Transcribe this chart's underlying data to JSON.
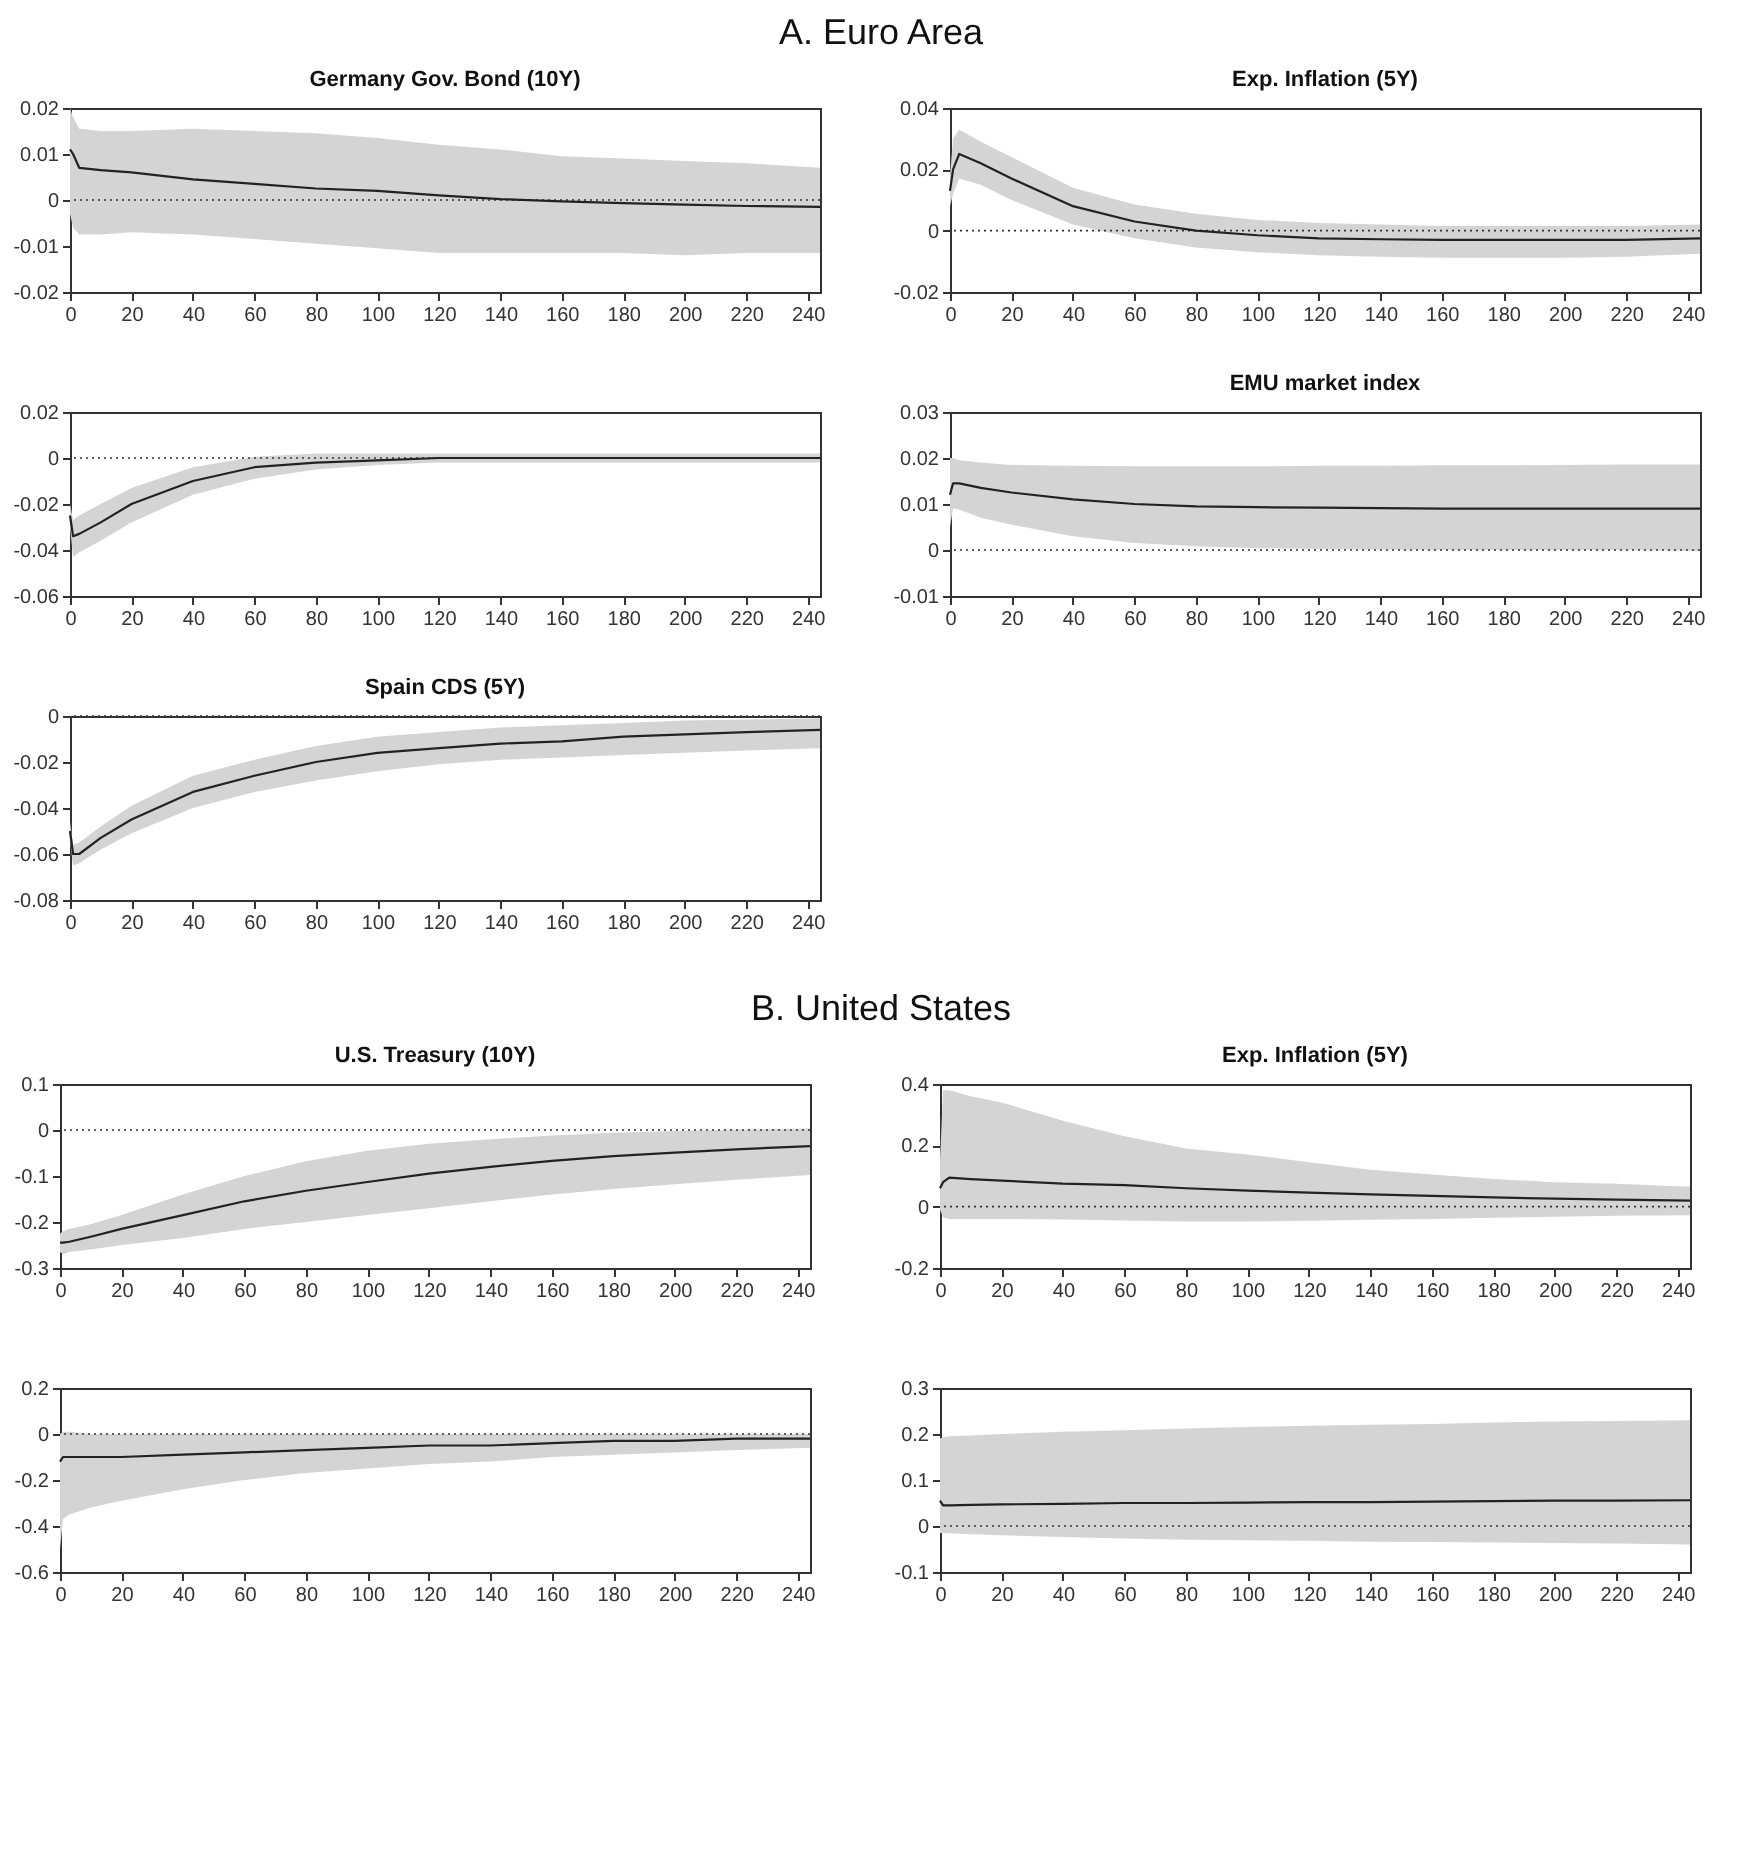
{
  "chart_data": [
    {
      "type": "other",
      "title": "A. Euro Area"
    },
    {
      "type": "line",
      "title": "Germany Gov. Bond (10Y)",
      "x": [
        0,
        1,
        3,
        10,
        20,
        40,
        60,
        80,
        100,
        120,
        140,
        160,
        180,
        200,
        220,
        244
      ],
      "xlim": [
        0,
        244
      ],
      "xticks": [
        0,
        20,
        40,
        60,
        80,
        100,
        120,
        140,
        160,
        180,
        200,
        220,
        240
      ],
      "ylim": [
        -0.02,
        0.02
      ],
      "yticks": [
        -0.02,
        -0.01,
        0,
        0.01,
        0.02
      ],
      "ref_lines": [
        {
          "axis": "y",
          "value": 0,
          "color": "#333333",
          "line_style": "dotted"
        }
      ],
      "series": [
        {
          "color": "#222222",
          "values": [
            0.011,
            0.01,
            0.007,
            0.0065,
            0.006,
            0.0045,
            0.0035,
            0.0025,
            0.002,
            0.001,
            0.0002,
            -0.0003,
            -0.0007,
            -0.001,
            -0.0013,
            -0.0015
          ],
          "upper": [
            0.02,
            0.018,
            0.0155,
            0.015,
            0.015,
            0.0155,
            0.015,
            0.0145,
            0.0135,
            0.012,
            0.011,
            0.0095,
            0.009,
            0.0085,
            0.008,
            0.007
          ],
          "lower": [
            -0.003,
            -0.006,
            -0.0075,
            -0.0075,
            -0.007,
            -0.0075,
            -0.0085,
            -0.0095,
            -0.0105,
            -0.0115,
            -0.0115,
            -0.0115,
            -0.0115,
            -0.012,
            -0.0115,
            -0.0115
          ]
        }
      ]
    },
    {
      "type": "line",
      "title": "Exp. Inflation (5Y)",
      "x": [
        0,
        1,
        3,
        10,
        20,
        40,
        60,
        80,
        100,
        120,
        140,
        160,
        180,
        200,
        220,
        244
      ],
      "xlim": [
        0,
        244
      ],
      "xticks": [
        0,
        20,
        40,
        60,
        80,
        100,
        120,
        140,
        160,
        180,
        200,
        220,
        240
      ],
      "ylim": [
        -0.02,
        0.04
      ],
      "yticks": [
        -0.02,
        0,
        0.02,
        0.04
      ],
      "ref_lines": [
        {
          "axis": "y",
          "value": 0,
          "color": "#333333",
          "line_style": "dotted"
        }
      ],
      "series": [
        {
          "color": "#222222",
          "values": [
            0.013,
            0.02,
            0.025,
            0.022,
            0.017,
            0.008,
            0.003,
            0,
            -0.0015,
            -0.0025,
            -0.0028,
            -0.003,
            -0.003,
            -0.003,
            -0.003,
            -0.0025
          ],
          "upper": [
            0.018,
            0.03,
            0.033,
            0.029,
            0.024,
            0.014,
            0.0085,
            0.0055,
            0.0035,
            0.0025,
            0.002,
            0.0015,
            0.0015,
            0.0015,
            0.0015,
            0.002
          ],
          "lower": [
            0.008,
            0.012,
            0.017,
            0.015,
            0.01,
            0.002,
            -0.0025,
            -0.0055,
            -0.007,
            -0.008,
            -0.0085,
            -0.0088,
            -0.0088,
            -0.0088,
            -0.0085,
            -0.0075
          ]
        }
      ]
    },
    {
      "type": "line",
      "x": [
        0,
        1,
        3,
        10,
        20,
        40,
        60,
        80,
        100,
        120,
        140,
        160,
        180,
        200,
        220,
        244
      ],
      "xlim": [
        0,
        244
      ],
      "xticks": [
        0,
        20,
        40,
        60,
        80,
        100,
        120,
        140,
        160,
        180,
        200,
        220,
        240
      ],
      "ylim": [
        -0.06,
        0.02
      ],
      "yticks": [
        -0.06,
        -0.04,
        -0.02,
        0,
        0.02
      ],
      "ref_lines": [
        {
          "axis": "y",
          "value": 0,
          "color": "#333333",
          "line_style": "dotted"
        }
      ],
      "series": [
        {
          "color": "#222222",
          "values": [
            -0.025,
            -0.034,
            -0.033,
            -0.028,
            -0.02,
            -0.01,
            -0.004,
            -0.002,
            -0.001,
            0,
            0,
            0,
            0,
            0,
            0,
            0
          ],
          "upper": [
            -0.02,
            -0.027,
            -0.025,
            -0.02,
            -0.013,
            -0.004,
            0.0005,
            0.002,
            0.002,
            0.002,
            0.002,
            0.002,
            0.002,
            0.002,
            0.002,
            0.002
          ],
          "lower": [
            -0.03,
            -0.043,
            -0.041,
            -0.036,
            -0.028,
            -0.016,
            -0.009,
            -0.005,
            -0.003,
            -0.002,
            -0.002,
            -0.002,
            -0.002,
            -0.002,
            -0.002,
            -0.002
          ]
        }
      ]
    },
    {
      "type": "line",
      "title": "EMU market index",
      "x": [
        0,
        1,
        3,
        10,
        20,
        40,
        60,
        80,
        100,
        120,
        140,
        160,
        180,
        200,
        220,
        244
      ],
      "xlim": [
        0,
        244
      ],
      "xticks": [
        0,
        20,
        40,
        60,
        80,
        100,
        120,
        140,
        160,
        180,
        200,
        220,
        240
      ],
      "ylim": [
        -0.01,
        0.03
      ],
      "yticks": [
        -0.01,
        0,
        0.01,
        0.02,
        0.03
      ],
      "ref_lines": [
        {
          "axis": "y",
          "value": 0,
          "color": "#333333",
          "line_style": "dotted"
        }
      ],
      "series": [
        {
          "color": "#222222",
          "values": [
            0.012,
            0.0145,
            0.0145,
            0.0135,
            0.0125,
            0.011,
            0.01,
            0.0095,
            0.0093,
            0.0092,
            0.0091,
            0.009,
            0.009,
            0.009,
            0.009,
            0.009
          ],
          "upper": [
            0.02,
            0.02,
            0.0195,
            0.019,
            0.0185,
            0.0183,
            0.0182,
            0.0182,
            0.0182,
            0.0183,
            0.0183,
            0.0184,
            0.0184,
            0.0185,
            0.0186,
            0.0186
          ],
          "lower": [
            0.005,
            0.009,
            0.0088,
            0.007,
            0.0055,
            0.003,
            0.0015,
            0.0008,
            0.0004,
            0.0002,
            0.0001,
            0,
            0,
            0,
            0,
            -0.0002
          ]
        }
      ]
    },
    {
      "type": "line",
      "title": "Spain CDS (5Y)",
      "x": [
        0,
        1,
        3,
        10,
        20,
        40,
        60,
        80,
        100,
        120,
        140,
        160,
        180,
        200,
        220,
        244
      ],
      "xlim": [
        0,
        244
      ],
      "xticks": [
        0,
        20,
        40,
        60,
        80,
        100,
        120,
        140,
        160,
        180,
        200,
        220,
        240
      ],
      "ylim": [
        -0.08,
        0
      ],
      "yticks": [
        -0.08,
        -0.06,
        -0.04,
        -0.02,
        0
      ],
      "ref_lines": [
        {
          "axis": "y",
          "value": 0,
          "color": "#333333",
          "line_style": "dotted"
        }
      ],
      "series": [
        {
          "color": "#222222",
          "values": [
            -0.05,
            -0.06,
            -0.06,
            -0.053,
            -0.045,
            -0.033,
            -0.026,
            -0.02,
            -0.016,
            -0.014,
            -0.012,
            -0.011,
            -0.009,
            -0.008,
            -0.007,
            -0.006
          ],
          "upper": [
            -0.046,
            -0.056,
            -0.055,
            -0.048,
            -0.039,
            -0.026,
            -0.019,
            -0.013,
            -0.009,
            -0.007,
            -0.005,
            -0.004,
            -0.003,
            -0.002,
            -0.0015,
            -0.001
          ],
          "lower": [
            -0.054,
            -0.065,
            -0.064,
            -0.058,
            -0.051,
            -0.04,
            -0.033,
            -0.028,
            -0.024,
            -0.021,
            -0.019,
            -0.018,
            -0.017,
            -0.016,
            -0.015,
            -0.014
          ]
        }
      ]
    },
    {
      "type": "other",
      "title": "B. United States"
    },
    {
      "type": "line",
      "title": "U.S. Treasury (10Y)",
      "x": [
        0,
        1,
        3,
        10,
        20,
        40,
        60,
        80,
        100,
        120,
        140,
        160,
        180,
        200,
        220,
        244
      ],
      "xlim": [
        0,
        244
      ],
      "xticks": [
        0,
        20,
        40,
        60,
        80,
        100,
        120,
        140,
        160,
        180,
        200,
        220,
        240
      ],
      "ylim": [
        -0.3,
        0.1
      ],
      "yticks": [
        -0.3,
        -0.2,
        -0.1,
        0,
        0.1
      ],
      "ref_lines": [
        {
          "axis": "y",
          "value": 0,
          "color": "#333333",
          "line_style": "dotted"
        }
      ],
      "series": [
        {
          "color": "#222222",
          "values": [
            -0.245,
            -0.245,
            -0.243,
            -0.232,
            -0.215,
            -0.185,
            -0.155,
            -0.132,
            -0.113,
            -0.095,
            -0.08,
            -0.067,
            -0.057,
            -0.049,
            -0.042,
            -0.035
          ],
          "upper": [
            -0.225,
            -0.22,
            -0.215,
            -0.205,
            -0.185,
            -0.14,
            -0.1,
            -0.068,
            -0.045,
            -0.03,
            -0.02,
            -0.012,
            -0.006,
            -0.002,
            0.001,
            0.003
          ],
          "lower": [
            -0.265,
            -0.27,
            -0.265,
            -0.26,
            -0.25,
            -0.235,
            -0.215,
            -0.2,
            -0.185,
            -0.17,
            -0.155,
            -0.14,
            -0.128,
            -0.118,
            -0.108,
            -0.098
          ]
        }
      ]
    },
    {
      "type": "line",
      "title": "Exp. Inflation (5Y)",
      "x": [
        0,
        1,
        3,
        10,
        20,
        40,
        60,
        80,
        100,
        120,
        140,
        160,
        180,
        200,
        220,
        244
      ],
      "xlim": [
        0,
        244
      ],
      "xticks": [
        0,
        20,
        40,
        60,
        80,
        100,
        120,
        140,
        160,
        180,
        200,
        220,
        240
      ],
      "ylim": [
        -0.2,
        0.4
      ],
      "yticks": [
        -0.2,
        0,
        0.2,
        0.4
      ],
      "ref_lines": [
        {
          "axis": "y",
          "value": 0,
          "color": "#333333",
          "line_style": "dotted"
        }
      ],
      "series": [
        {
          "color": "#222222",
          "values": [
            0.06,
            0.08,
            0.095,
            0.09,
            0.085,
            0.075,
            0.07,
            0.06,
            0.052,
            0.046,
            0.04,
            0.035,
            0.03,
            0.026,
            0.023,
            0.02
          ],
          "upper": [
            0.15,
            0.38,
            0.38,
            0.36,
            0.34,
            0.28,
            0.23,
            0.19,
            0.17,
            0.145,
            0.12,
            0.105,
            0.09,
            0.08,
            0.075,
            0.065
          ],
          "lower": [
            -0.01,
            -0.035,
            -0.04,
            -0.04,
            -0.04,
            -0.042,
            -0.045,
            -0.048,
            -0.048,
            -0.046,
            -0.043,
            -0.04,
            -0.036,
            -0.033,
            -0.03,
            -0.028
          ]
        }
      ]
    },
    {
      "type": "line",
      "x": [
        0,
        1,
        3,
        10,
        20,
        40,
        60,
        80,
        100,
        120,
        140,
        160,
        180,
        200,
        220,
        244
      ],
      "xlim": [
        0,
        244
      ],
      "xticks": [
        0,
        20,
        40,
        60,
        80,
        100,
        120,
        140,
        160,
        180,
        200,
        220,
        240
      ],
      "ylim": [
        -0.6,
        0.2
      ],
      "yticks": [
        -0.6,
        -0.4,
        -0.2,
        0,
        0.2
      ],
      "ref_lines": [
        {
          "axis": "y",
          "value": 0,
          "color": "#333333",
          "line_style": "dotted"
        }
      ],
      "series": [
        {
          "color": "#222222",
          "values": [
            -0.12,
            -0.1,
            -0.1,
            -0.1,
            -0.1,
            -0.09,
            -0.08,
            -0.07,
            -0.06,
            -0.05,
            -0.05,
            -0.04,
            -0.03,
            -0.03,
            -0.02,
            -0.02
          ],
          "upper": [
            0,
            0.01,
            0.01,
            0,
            0,
            0,
            0,
            0,
            0,
            0,
            0,
            0,
            0,
            0,
            0,
            0
          ],
          "lower": [
            -0.5,
            -0.37,
            -0.35,
            -0.32,
            -0.29,
            -0.24,
            -0.2,
            -0.17,
            -0.15,
            -0.13,
            -0.12,
            -0.1,
            -0.09,
            -0.08,
            -0.07,
            -0.06
          ]
        }
      ]
    },
    {
      "type": "line",
      "x": [
        0,
        1,
        3,
        10,
        20,
        40,
        60,
        80,
        100,
        120,
        140,
        160,
        180,
        200,
        220,
        244
      ],
      "xlim": [
        0,
        244
      ],
      "xticks": [
        0,
        20,
        40,
        60,
        80,
        100,
        120,
        140,
        160,
        180,
        200,
        220,
        240
      ],
      "ylim": [
        -0.1,
        0.3
      ],
      "yticks": [
        -0.1,
        0,
        0.1,
        0.2,
        0.3
      ],
      "ref_lines": [
        {
          "axis": "y",
          "value": 0,
          "color": "#333333",
          "line_style": "dotted"
        }
      ],
      "series": [
        {
          "color": "#222222",
          "values": [
            0.055,
            0.045,
            0.045,
            0.046,
            0.047,
            0.048,
            0.05,
            0.05,
            0.051,
            0.052,
            0.052,
            0.053,
            0.054,
            0.055,
            0.055,
            0.056
          ],
          "upper": [
            0.19,
            0.193,
            0.195,
            0.197,
            0.2,
            0.205,
            0.208,
            0.212,
            0.215,
            0.218,
            0.22,
            0.222,
            0.225,
            0.227,
            0.228,
            0.23
          ],
          "lower": [
            -0.015,
            -0.015,
            -0.016,
            -0.018,
            -0.02,
            -0.024,
            -0.027,
            -0.03,
            -0.031,
            -0.032,
            -0.034,
            -0.035,
            -0.036,
            -0.037,
            -0.038,
            -0.04
          ]
        }
      ]
    }
  ]
}
